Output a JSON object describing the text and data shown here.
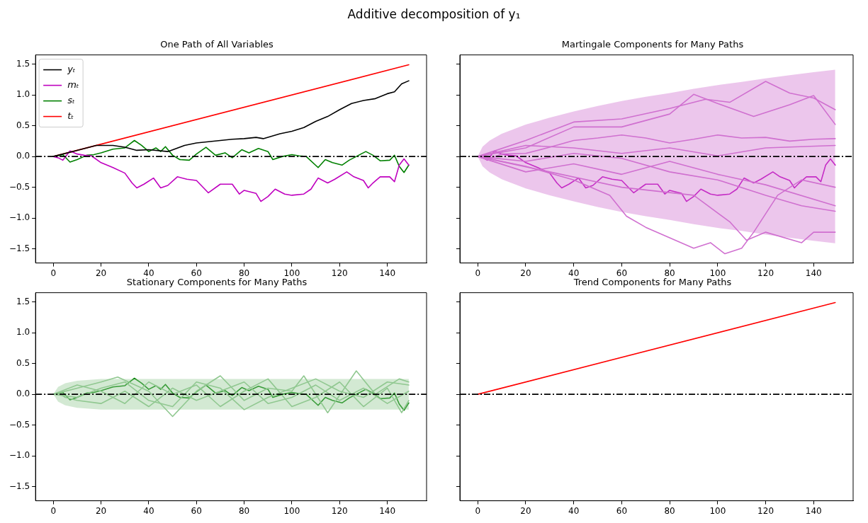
{
  "chart_data": [
    {
      "type": "line",
      "title": "One Path of All Variables",
      "annotations": [
        "Additive decomposition of y₁"
      ],
      "legend": "top left",
      "xlim": [
        -7.45,
        156.45
      ],
      "xticks": [
        0,
        20,
        40,
        60,
        80,
        100,
        120,
        140
      ],
      "ylim": [
        -1.73,
        1.65
      ],
      "yticks": [
        {
          "value": -1.5,
          "label": "−1.5"
        },
        {
          "value": -1,
          "label": "−1.0"
        },
        {
          "value": -0.5,
          "label": "−0.5"
        },
        {
          "value": 0,
          "label": "0.0"
        },
        {
          "value": 0.5,
          "label": "0.5"
        },
        {
          "value": 1,
          "label": "1.0"
        },
        {
          "value": 1.5,
          "label": "1.5"
        }
      ],
      "ref_lines": [
        {
          "axis": "y",
          "value": 0,
          "color": "#000000",
          "line_style": "dashed"
        }
      ],
      "series": [
        {
          "name": "yₜ",
          "color": "#000000",
          "x": [
            0,
            10,
            18,
            25,
            30,
            35,
            40,
            48,
            55,
            60,
            65,
            70,
            75,
            80,
            85,
            88,
            95,
            100,
            105,
            110,
            115,
            120,
            125,
            130,
            135,
            140,
            143,
            146,
            149
          ],
          "values": [
            0,
            0.1,
            0.18,
            0.18,
            0.15,
            0.1,
            0.11,
            0.08,
            0.18,
            0.22,
            0.24,
            0.26,
            0.28,
            0.29,
            0.31,
            0.29,
            0.37,
            0.41,
            0.47,
            0.57,
            0.65,
            0.76,
            0.86,
            0.91,
            0.94,
            1.02,
            1.05,
            1.18,
            1.23
          ]
        },
        {
          "name": "mₜ",
          "color": "#bf00bf",
          "x": [
            0,
            2,
            4,
            7,
            10,
            13,
            16,
            20,
            25,
            30,
            33,
            35,
            38,
            42,
            45,
            48,
            52,
            56,
            60,
            65,
            70,
            75,
            78,
            80,
            85,
            87,
            90,
            93,
            97,
            100,
            105,
            108,
            111,
            115,
            118,
            123,
            126,
            130,
            132,
            134,
            137,
            141,
            143,
            145,
            147,
            149
          ],
          "values": [
            0,
            -0.02,
            -0.06,
            0.09,
            0.04,
            0.02,
            0.01,
            -0.1,
            -0.18,
            -0.27,
            -0.43,
            -0.51,
            -0.45,
            -0.35,
            -0.51,
            -0.47,
            -0.33,
            -0.37,
            -0.39,
            -0.59,
            -0.45,
            -0.45,
            -0.61,
            -0.55,
            -0.6,
            -0.73,
            -0.65,
            -0.53,
            -0.61,
            -0.63,
            -0.61,
            -0.53,
            -0.35,
            -0.43,
            -0.37,
            -0.25,
            -0.33,
            -0.39,
            -0.51,
            -0.43,
            -0.33,
            -0.33,
            -0.41,
            -0.14,
            -0.04,
            -0.14
          ]
        },
        {
          "name": "sₜ",
          "color": "#008000",
          "x": [
            0,
            4,
            7,
            10,
            14,
            17,
            20,
            25,
            30,
            32,
            34,
            37,
            40,
            43,
            45,
            47,
            50,
            53,
            57,
            60,
            64,
            68,
            72,
            75,
            79,
            82,
            86,
            90,
            92,
            96,
            100,
            103,
            106,
            111,
            114,
            117,
            121,
            124,
            127,
            131,
            134,
            137,
            141,
            143,
            145,
            147,
            149
          ],
          "values": [
            0,
            0.03,
            -0.09,
            -0.05,
            0.02,
            0.03,
            0.06,
            0.12,
            0.14,
            0.2,
            0.26,
            0.18,
            0.08,
            0.14,
            0.08,
            0.16,
            0.02,
            -0.05,
            -0.06,
            0.04,
            0.15,
            0.02,
            0.06,
            -0.02,
            0.11,
            0.06,
            0.13,
            0.08,
            -0.05,
            0,
            0.03,
            0.01,
            0,
            -0.18,
            -0.05,
            -0.1,
            -0.14,
            -0.06,
            0,
            0.08,
            0.02,
            -0.07,
            -0.06,
            0.02,
            -0.16,
            -0.26,
            -0.14
          ]
        },
        {
          "name": "tₜ",
          "color": "#ff0000",
          "x": [
            0,
            149
          ],
          "values": [
            0,
            1.49
          ]
        }
      ]
    },
    {
      "type": "line",
      "title": "Martingale Components for Many Paths",
      "tick_labels": "x",
      "xlim": [
        -7.45,
        156.45
      ],
      "xticks": [
        0,
        20,
        40,
        60,
        80,
        100,
        120,
        140
      ],
      "ylim": [
        -1.73,
        1.65
      ],
      "yticks": [
        {
          "value": -1.5,
          "label": null
        },
        {
          "value": -1,
          "label": null
        },
        {
          "value": -0.5,
          "label": null
        },
        {
          "value": 0,
          "label": null
        },
        {
          "value": 0.5,
          "label": null
        },
        {
          "value": 1,
          "label": null
        },
        {
          "value": 1.5,
          "label": null
        }
      ],
      "ref_lines": [
        {
          "axis": "y",
          "value": 0,
          "color": "#000000",
          "line_style": "dashed"
        }
      ],
      "series": [
        {
          "color": "#d070d0",
          "x": [
            0,
            2,
            5,
            10,
            20,
            30,
            40,
            50,
            60,
            70,
            80,
            90,
            100,
            110,
            120,
            130,
            140,
            149
          ],
          "values": [
            0,
            0.02,
            -0.03,
            0.04,
            0.05,
            0.15,
            0.26,
            0.3,
            0.35,
            0.3,
            0.22,
            0.28,
            0.35,
            0.3,
            0.31,
            0.25,
            0.28,
            0.29
          ],
          "lower": [
            0,
            -0.16,
            -0.26,
            -0.37,
            -0.52,
            -0.63,
            -0.73,
            -0.82,
            -0.9,
            -0.97,
            -1.03,
            -1.1,
            -1.16,
            -1.21,
            -1.27,
            -1.32,
            -1.37,
            -1.41
          ],
          "upper": [
            0,
            0.16,
            0.26,
            0.37,
            0.52,
            0.63,
            0.73,
            0.82,
            0.9,
            0.97,
            1.03,
            1.1,
            1.16,
            1.21,
            1.27,
            1.32,
            1.37,
            1.41
          ]
        },
        {
          "color": "#d070d0",
          "x": [
            0,
            20,
            40,
            60,
            80,
            95,
            105,
            120,
            130,
            140,
            149
          ],
          "values": [
            0,
            0.26,
            0.56,
            0.61,
            0.78,
            0.93,
            0.88,
            1.22,
            1.03,
            0.95,
            0.76
          ]
        },
        {
          "color": "#d070d0",
          "x": [
            0,
            20,
            40,
            55,
            62,
            70,
            80,
            90,
            97,
            103,
            110,
            115,
            125,
            135,
            149
          ],
          "values": [
            0,
            -0.16,
            -0.38,
            -0.63,
            -0.97,
            -1.15,
            -1.32,
            -1.49,
            -1.4,
            -1.58,
            -1.49,
            -1.23,
            -0.63,
            -0.38,
            -0.5
          ]
        },
        {
          "color": "#d070d0",
          "x": [
            0,
            30,
            60,
            90,
            105,
            112,
            120,
            135,
            140,
            149
          ],
          "values": [
            0,
            -0.25,
            -0.5,
            -0.63,
            -1.06,
            -1.36,
            -1.23,
            -1.4,
            -1.23,
            -1.23
          ]
        },
        {
          "color": "#d070d0",
          "x": [
            0,
            20,
            40,
            60,
            80,
            90,
            100,
            115,
            130,
            140,
            149
          ],
          "values": [
            0,
            0.14,
            0.48,
            0.48,
            0.69,
            1.01,
            0.86,
            0.65,
            0.84,
            0.99,
            0.52
          ]
        },
        {
          "color": "#d070d0",
          "x": [
            0,
            20,
            40,
            60,
            80,
            100,
            120,
            149
          ],
          "values": [
            0,
            -0.25,
            -0.12,
            -0.29,
            -0.08,
            -0.29,
            -0.46,
            -0.8
          ]
        },
        {
          "color": "#d070d0",
          "x": [
            0,
            20,
            40,
            60,
            80,
            100,
            120,
            135,
            149
          ],
          "values": [
            0,
            -0.08,
            0.05,
            -0.03,
            -0.25,
            -0.38,
            -0.63,
            -0.8,
            -0.89
          ]
        },
        {
          "color": "#d070d0",
          "x": [
            0,
            20,
            40,
            60,
            80,
            100,
            120,
            149
          ],
          "values": [
            0,
            0.18,
            0.14,
            0.05,
            0.14,
            0.01,
            0.14,
            0.18
          ]
        },
        {
          "color": "#bf00bf",
          "x": [
            0,
            2,
            4,
            7,
            10,
            13,
            16,
            20,
            25,
            30,
            33,
            35,
            38,
            42,
            45,
            48,
            52,
            56,
            60,
            65,
            70,
            75,
            78,
            80,
            85,
            87,
            90,
            93,
            97,
            100,
            105,
            108,
            111,
            115,
            118,
            123,
            126,
            130,
            132,
            134,
            137,
            141,
            143,
            145,
            147,
            149
          ],
          "values": [
            0,
            -0.02,
            -0.06,
            0.09,
            0.04,
            0.02,
            0.01,
            -0.1,
            -0.18,
            -0.27,
            -0.43,
            -0.51,
            -0.45,
            -0.35,
            -0.51,
            -0.47,
            -0.33,
            -0.37,
            -0.39,
            -0.59,
            -0.45,
            -0.45,
            -0.61,
            -0.55,
            -0.6,
            -0.73,
            -0.65,
            -0.53,
            -0.61,
            -0.63,
            -0.61,
            -0.53,
            -0.35,
            -0.43,
            -0.37,
            -0.25,
            -0.33,
            -0.39,
            -0.51,
            -0.43,
            -0.33,
            -0.33,
            -0.41,
            -0.14,
            -0.04,
            -0.14
          ]
        }
      ]
    },
    {
      "type": "line",
      "title": "Stationary Components for Many Paths",
      "xlim": [
        -7.45,
        156.45
      ],
      "xticks": [
        0,
        20,
        40,
        60,
        80,
        100,
        120,
        140
      ],
      "ylim": [
        -1.73,
        1.65
      ],
      "yticks": [
        {
          "value": -1.5,
          "label": "−1.5"
        },
        {
          "value": -1,
          "label": "−1.0"
        },
        {
          "value": -0.5,
          "label": "−0.5"
        },
        {
          "value": 0,
          "label": "0.0"
        },
        {
          "value": 0.5,
          "label": "0.5"
        },
        {
          "value": 1,
          "label": "1.0"
        },
        {
          "value": 1.5,
          "label": "1.5"
        }
      ],
      "ref_lines": [
        {
          "axis": "y",
          "value": 0,
          "color": "#000000",
          "line_style": "dashed"
        }
      ],
      "series": [
        {
          "color": "#90c890",
          "x": [
            0,
            2,
            5,
            10,
            20,
            30,
            40,
            50,
            60,
            70,
            80,
            90,
            100,
            110,
            120,
            130,
            140,
            149
          ],
          "values": [
            0,
            0.03,
            -0.05,
            -0.1,
            -0.15,
            0.05,
            -0.2,
            0.1,
            -0.1,
            0.05,
            0.2,
            -0.15,
            -0.05,
            0.15,
            -0.1,
            0.1,
            -0.15,
            0.05
          ],
          "lower": [
            0,
            -0.12,
            -0.18,
            -0.22,
            -0.25,
            -0.25,
            -0.25,
            -0.25,
            -0.25,
            -0.25,
            -0.25,
            -0.25,
            -0.25,
            -0.25,
            -0.25,
            -0.25,
            -0.25,
            -0.25
          ],
          "upper": [
            0,
            0.12,
            0.18,
            0.22,
            0.25,
            0.25,
            0.25,
            0.25,
            0.25,
            0.25,
            0.25,
            0.25,
            0.25,
            0.25,
            0.25,
            0.25,
            0.25,
            0.25
          ]
        },
        {
          "color": "#90c890",
          "x": [
            0,
            10,
            20,
            27,
            40,
            50,
            60,
            70,
            80,
            90,
            100,
            105,
            115,
            127,
            135,
            145,
            149
          ],
          "values": [
            0,
            0.1,
            0.2,
            0.28,
            0.05,
            -0.36,
            0.05,
            0.3,
            -0.1,
            0.1,
            0.05,
            0.3,
            -0.3,
            0.38,
            0,
            0.25,
            0.2
          ]
        },
        {
          "color": "#90c890",
          "x": [
            0,
            10,
            20,
            30,
            40,
            50,
            60,
            70,
            80,
            90,
            100,
            110,
            120,
            130,
            140,
            146,
            149
          ],
          "values": [
            0,
            0.15,
            0.05,
            -0.15,
            0.2,
            0,
            0.15,
            -0.2,
            0.05,
            0.25,
            -0.2,
            -0.05,
            0.2,
            -0.2,
            0.1,
            -0.3,
            -0.1
          ]
        },
        {
          "color": "#90c890",
          "x": [
            0,
            10,
            20,
            30,
            40,
            50,
            60,
            70,
            80,
            90,
            100,
            110,
            120,
            130,
            140,
            149
          ],
          "values": [
            0,
            -0.05,
            0.1,
            0.2,
            -0.1,
            -0.2,
            0.2,
            0.1,
            -0.25,
            -0.05,
            0.1,
            0.25,
            0.05,
            -0.05,
            0.2,
            0.15
          ]
        },
        {
          "color": "#008000",
          "x": [
            0,
            4,
            7,
            10,
            14,
            17,
            20,
            25,
            30,
            32,
            34,
            37,
            40,
            43,
            45,
            47,
            50,
            53,
            57,
            60,
            64,
            68,
            72,
            75,
            79,
            82,
            86,
            90,
            92,
            96,
            100,
            103,
            106,
            111,
            114,
            117,
            121,
            124,
            127,
            131,
            134,
            137,
            141,
            143,
            145,
            147,
            149
          ],
          "values": [
            0,
            0.03,
            -0.09,
            -0.05,
            0.02,
            0.03,
            0.06,
            0.12,
            0.14,
            0.2,
            0.26,
            0.18,
            0.08,
            0.14,
            0.08,
            0.16,
            0.02,
            -0.05,
            -0.06,
            0.04,
            0.15,
            0.02,
            0.06,
            -0.02,
            0.11,
            0.06,
            0.13,
            0.08,
            -0.05,
            0,
            0.03,
            0.01,
            0,
            -0.18,
            -0.05,
            -0.1,
            -0.14,
            -0.06,
            0,
            0.08,
            0.02,
            -0.07,
            -0.06,
            0.02,
            -0.16,
            -0.26,
            -0.14
          ]
        }
      ]
    },
    {
      "type": "line",
      "title": "Trend Components for Many Paths",
      "tick_labels": "x",
      "xlim": [
        -7.45,
        156.45
      ],
      "xticks": [
        0,
        20,
        40,
        60,
        80,
        100,
        120,
        140
      ],
      "ylim": [
        -1.73,
        1.65
      ],
      "yticks": [
        {
          "value": -1.5,
          "label": null
        },
        {
          "value": -1,
          "label": null
        },
        {
          "value": -0.5,
          "label": null
        },
        {
          "value": 0,
          "label": null
        },
        {
          "value": 0.5,
          "label": null
        },
        {
          "value": 1,
          "label": null
        },
        {
          "value": 1.5,
          "label": null
        }
      ],
      "ref_lines": [
        {
          "axis": "y",
          "value": 0,
          "color": "#000000",
          "line_style": "dashed"
        }
      ],
      "series": [
        {
          "color": "#ff0000",
          "x": [
            0,
            149
          ],
          "values": [
            0,
            1.49
          ]
        }
      ]
    }
  ]
}
